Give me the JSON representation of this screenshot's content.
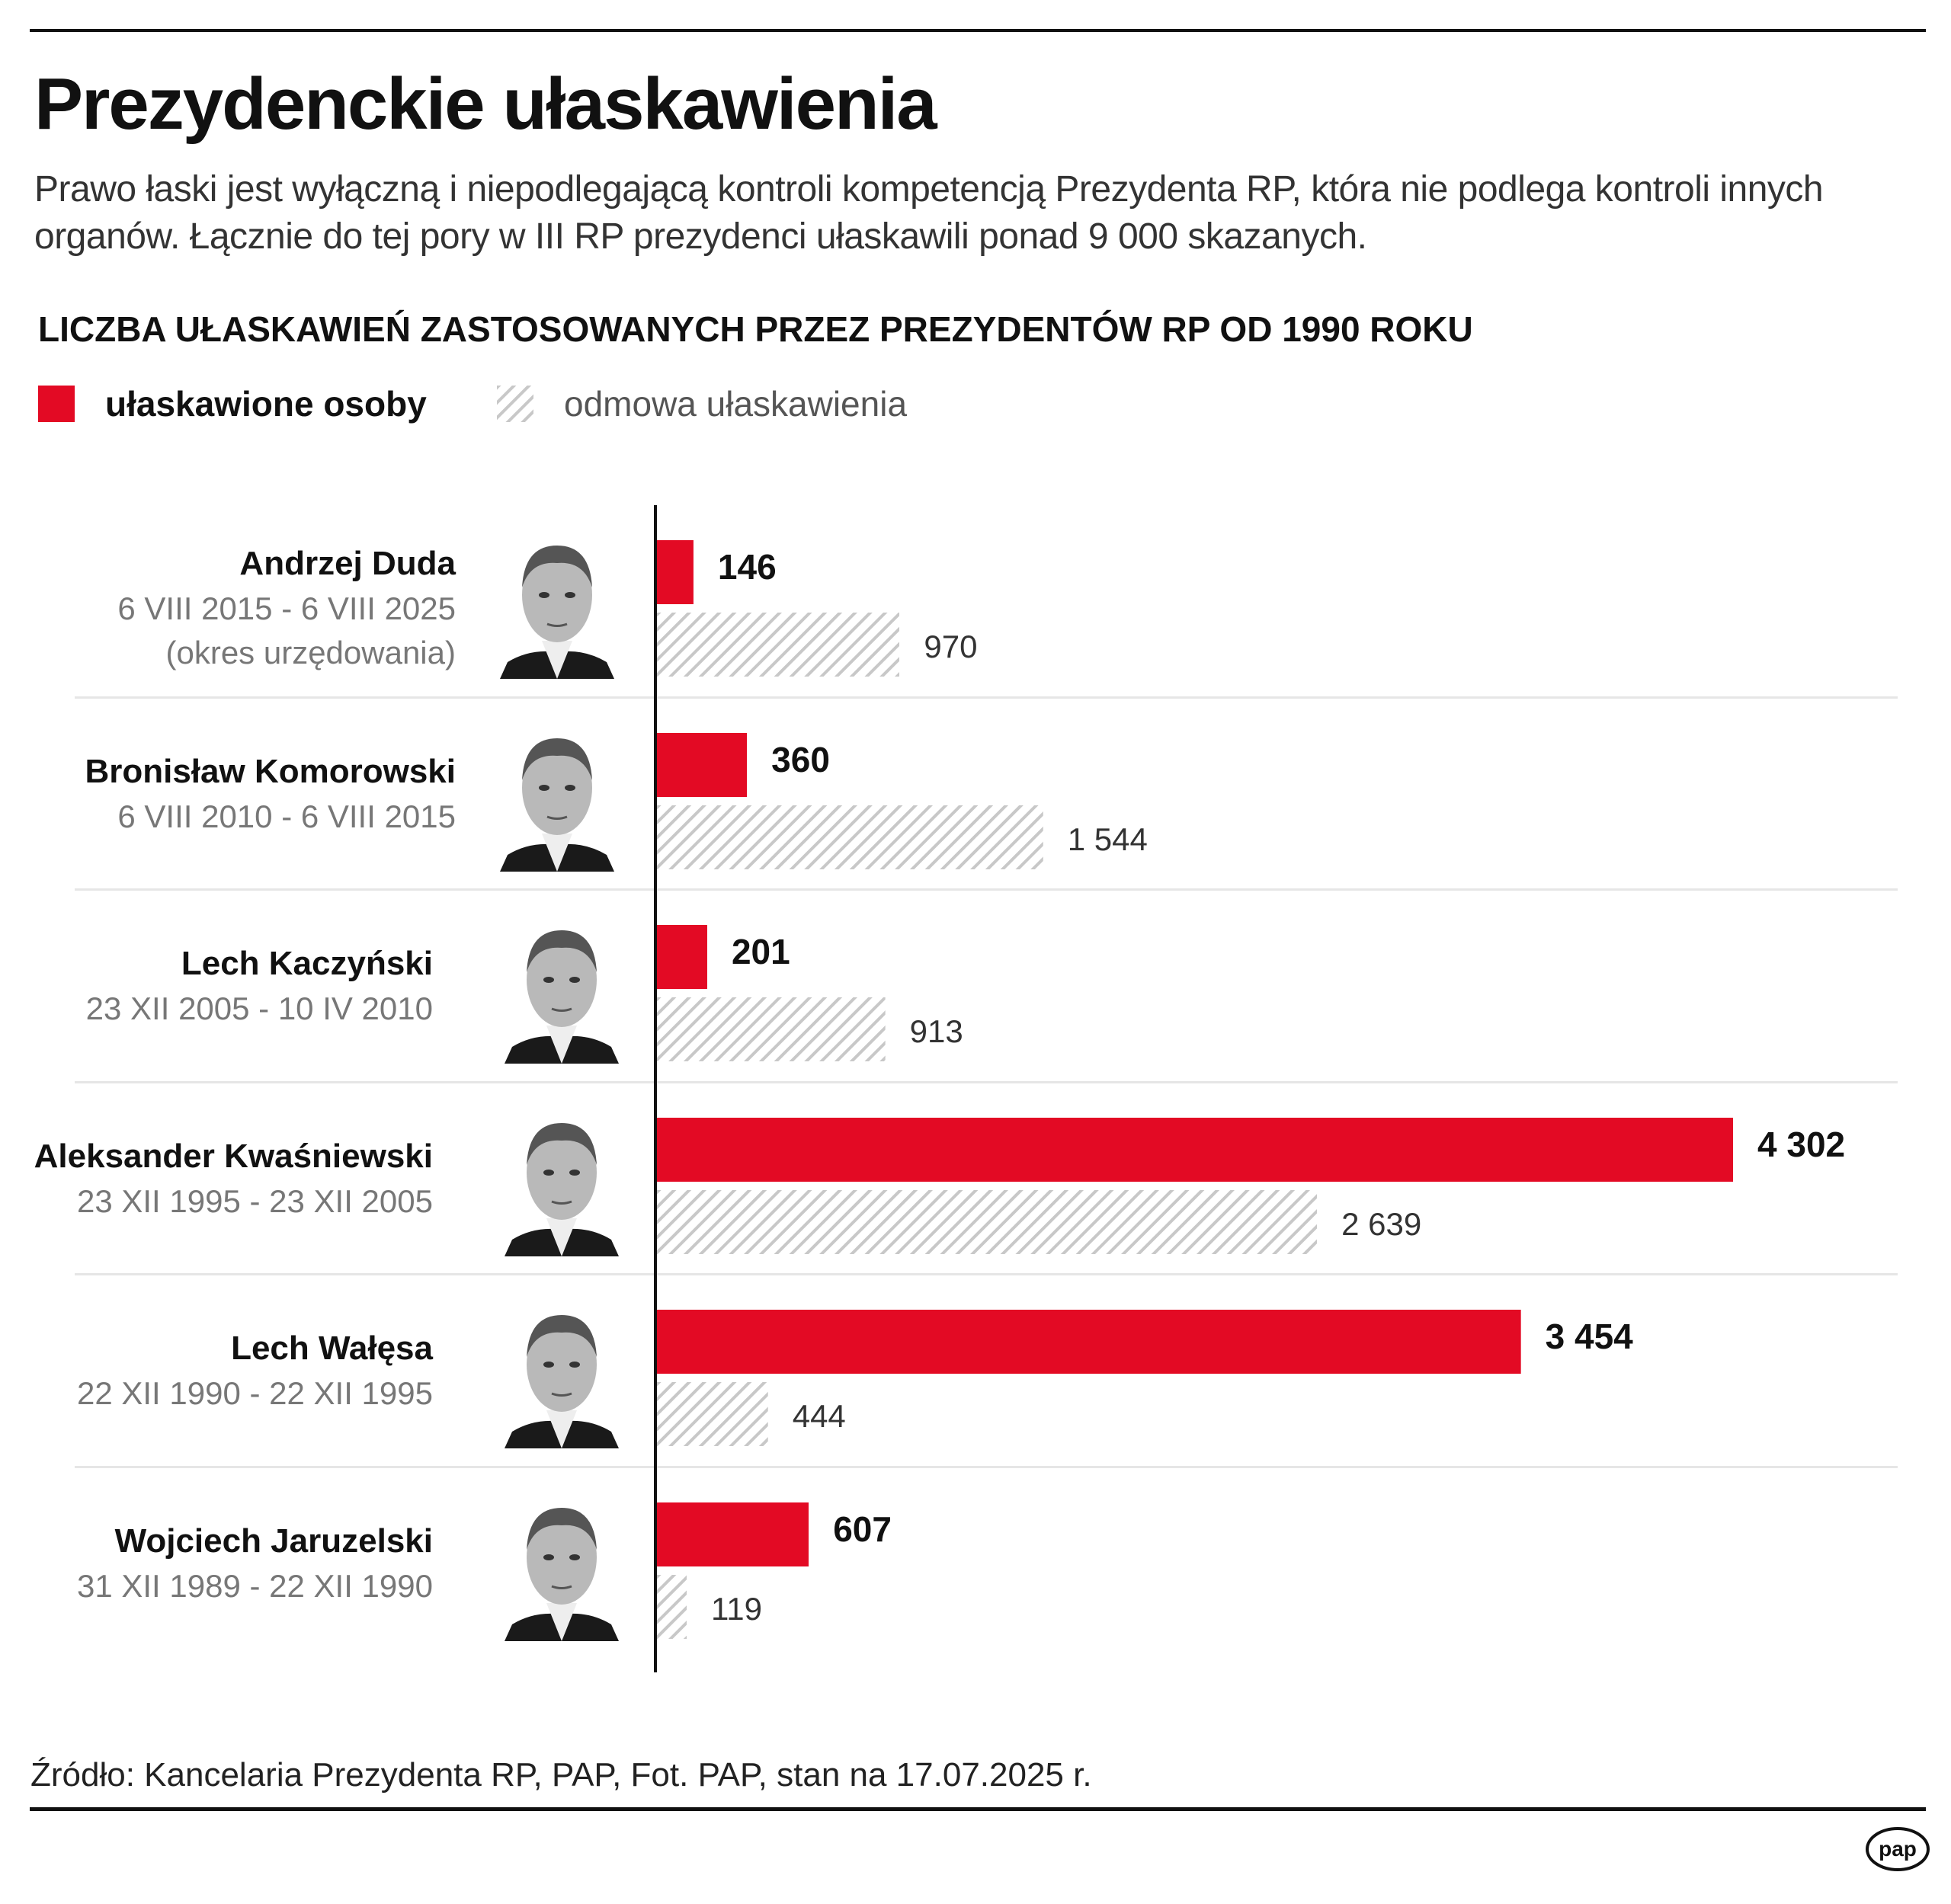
{
  "title": "Prezydenckie ułaskawienia",
  "subtitle": "Prawo łaski jest wyłączną i niepodlegającą kontroli kompetencją Prezydenta RP, która nie podlega kontroli innych organów. Łącznie do tej pory w III RP prezydenci ułaskawili ponad 9 000 skazanych.",
  "chart_heading": "LICZBA UŁASKAWIEŃ ZASTOSOWANYCH PRZEZ PREZYDENTÓW RP OD 1990 ROKU",
  "source": "Źródło: Kancelaria Prezydenta RP, PAP, Fot. PAP, stan na 17.07.2025 r.",
  "logo": "pap",
  "colors": {
    "pardoned": "#e30a24",
    "refused_hatch": "#c8c8c8",
    "axis": "#111111"
  },
  "chart_data": {
    "type": "bar",
    "orientation": "horizontal",
    "title": "LICZBA UŁASKAWIEŃ ZASTOSOWANYCH PRZEZ PREZYDENTÓW RP OD 1990 ROKU",
    "legend": {
      "placement": "top-left"
    },
    "grid": false,
    "categories": [
      "Andrzej Duda",
      "Bronisław Komorowski",
      "Lech Kaczyński",
      "Aleksander Kwaśniewski",
      "Lech Wałęsa",
      "Wojciech Jaruzelski"
    ],
    "terms": [
      "6 VIII 2015 - 6 VIII 2025",
      "6 VIII 2010 - 6 VIII 2015",
      "23 XII 2005 - 10 IV 2010",
      "23 XII 1995 - 23 XII 2005",
      "22 XII 1990 - 22 XII 1995",
      "31 XII 1989 - 22 XII 1990"
    ],
    "term_notes": [
      "(okres urzędowania)",
      "",
      "",
      "",
      "",
      ""
    ],
    "series": [
      {
        "name": "ułaskawione osoby",
        "style": "solid red",
        "values": [
          146,
          360,
          201,
          4302,
          3454,
          607
        ],
        "labels": [
          "146",
          "360",
          "201",
          "4 302",
          "3 454",
          "607"
        ]
      },
      {
        "name": "odmowa ułaskawienia",
        "style": "hatched gray",
        "values": [
          970,
          1544,
          913,
          2639,
          444,
          119
        ],
        "labels": [
          "970",
          "1 544",
          "913",
          "2 639",
          "444",
          "119"
        ]
      }
    ],
    "xlim": [
      0,
      4302
    ]
  }
}
